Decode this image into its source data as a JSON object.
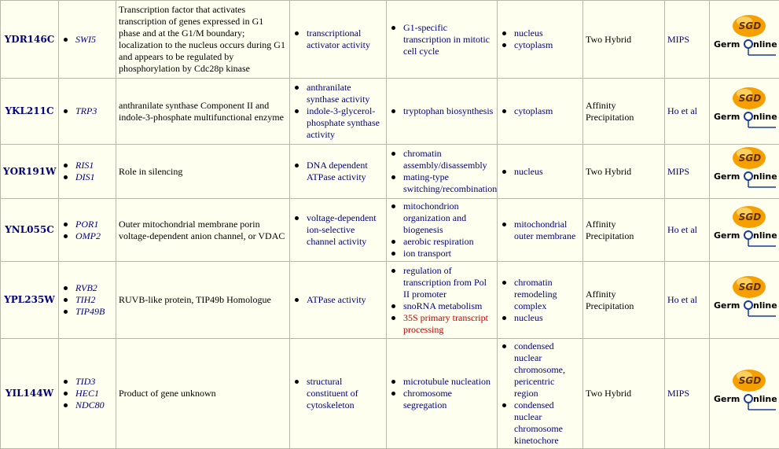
{
  "logos": {
    "sgd": "SGD",
    "germ": "Germ",
    "online": "nline"
  },
  "table": {
    "rows": [
      {
        "id": "YDR146C",
        "genes": [
          "SWI5"
        ],
        "description": "Transcription factor that activates transcription of genes expressed in G1 phase and at the G1/M boundary; localization to the nucleus occurs during G1 and appears to be regulated by phosphorylation by Cdc28p kinase",
        "functions": [
          "transcriptional activator activity"
        ],
        "processes": [
          "G1-specific transcription in mitotic cell cycle"
        ],
        "components": [
          "nucleus",
          "cytoplasm"
        ],
        "method": "Two Hybrid",
        "source": "MIPS"
      },
      {
        "id": "YKL211C",
        "genes": [
          "TRP3"
        ],
        "description": "anthranilate synthase Component II and indole-3-phosphate multifunctional enzyme",
        "functions": [
          "anthranilate synthase activity",
          "indole-3-glycerol-phosphate synthase activity"
        ],
        "processes": [
          "tryptophan biosynthesis"
        ],
        "components": [
          "cytoplasm"
        ],
        "method": "Affinity Precipitation",
        "source": "Ho et al"
      },
      {
        "id": "YOR191W",
        "genes": [
          "RIS1",
          "DIS1"
        ],
        "description": "Role in silencing",
        "functions": [
          "DNA dependent ATPase activity"
        ],
        "processes": [
          "chromatin assembly/disassembly",
          "mating-type switching/recombination"
        ],
        "components": [
          "nucleus"
        ],
        "method": "Two Hybrid",
        "source": "MIPS"
      },
      {
        "id": "YNL055C",
        "genes": [
          "POR1",
          "OMP2"
        ],
        "description": "Outer mitochondrial membrane porin voltage-dependent anion channel, or VDAC",
        "functions": [
          "voltage-dependent ion-selective channel activity"
        ],
        "processes": [
          "mitochondrion organization and biogenesis",
          "aerobic respiration",
          "ion transport"
        ],
        "components": [
          "mitochondrial outer membrane"
        ],
        "method": "Affinity Precipitation",
        "source": "Ho et al"
      },
      {
        "id": "YPL235W",
        "genes": [
          "RVB2",
          "TIH2",
          "TIP49B"
        ],
        "description": "RUVB-like protein, TIP49b Homologue",
        "functions": [
          "ATPase activity"
        ],
        "processes": [
          "regulation of transcription from Pol II promoter",
          "snoRNA metabolism",
          {
            "text": "35S primary transcript processing",
            "color": "#c00000"
          }
        ],
        "components": [
          "chromatin remodeling complex",
          "nucleus"
        ],
        "method": "Affinity Precipitation",
        "source": "Ho et al"
      },
      {
        "id": "YIL144W",
        "genes": [
          "TID3",
          "HEC1",
          "NDC80"
        ],
        "description": "Product of gene unknown",
        "functions": [
          "structural constituent of cytoskeleton"
        ],
        "processes": [
          "microtubule nucleation",
          "chromosome segregation"
        ],
        "components": [
          "condensed nuclear chromosome, pericentric region",
          "condensed nuclear chromosome kinetochore"
        ],
        "method": "Two Hybrid",
        "source": "MIPS"
      }
    ]
  }
}
